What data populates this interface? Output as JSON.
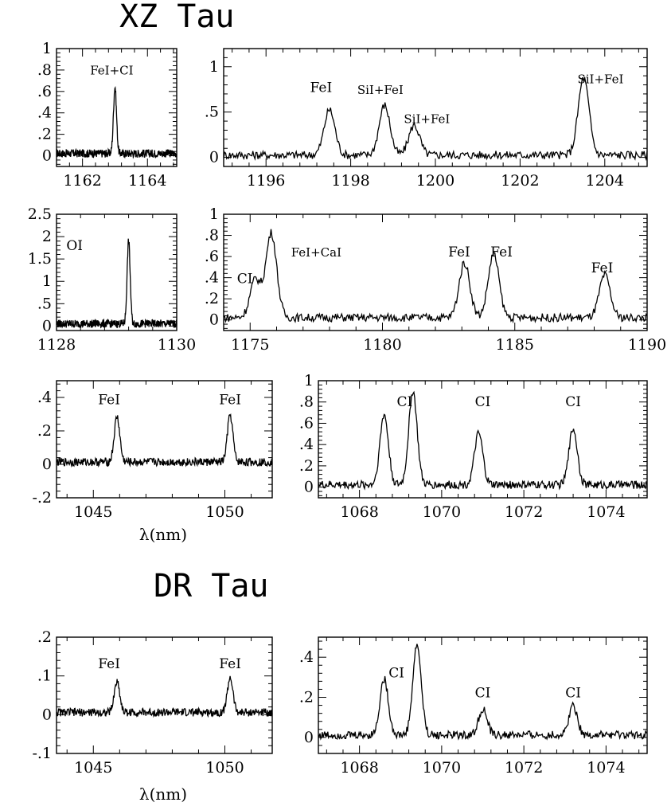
{
  "figure": {
    "titles": [
      "XZ Tau",
      "DR Tau"
    ],
    "xlabel": "λ(nm)"
  },
  "chart_data": [
    {
      "type": "line",
      "star": "XZ Tau",
      "xlim": [
        1161.2,
        1164.9
      ],
      "ylim": [
        -0.1,
        1.0
      ],
      "xticks": [
        1162,
        1164
      ],
      "yticks": [
        0,
        0.2,
        0.4,
        0.6,
        0.8,
        1
      ],
      "features": [
        {
          "label": "FeI+CI",
          "x": 1163.0,
          "peak": 0.62
        }
      ],
      "annotations": [
        {
          "text": "FeI+CI",
          "x": 1162.9,
          "y": 0.76
        }
      ]
    },
    {
      "type": "line",
      "star": "XZ Tau",
      "xlim": [
        1195.0,
        1205.0
      ],
      "ylim": [
        -0.1,
        1.2
      ],
      "xticks": [
        1196,
        1198,
        1200,
        1202,
        1204
      ],
      "yticks": [
        0,
        0.5,
        1
      ],
      "features": [
        {
          "label": "FeI",
          "x": 1197.5,
          "peak": 0.5
        },
        {
          "label": "SiI+FeI",
          "x": 1198.8,
          "peak": 0.55
        },
        {
          "label": "SiI+FeI",
          "x": 1199.5,
          "peak": 0.33
        },
        {
          "label": "SiI+FeI",
          "x": 1203.5,
          "peak": 0.85
        }
      ],
      "annotations": [
        {
          "text": "FeI",
          "x": 1197.3,
          "y": 0.72
        },
        {
          "text": "SiI+FeI",
          "x": 1198.7,
          "y": 0.7
        },
        {
          "text": "SiI+FeI",
          "x": 1199.8,
          "y": 0.38
        },
        {
          "text": "SiI+FeI",
          "x": 1203.9,
          "y": 0.82
        }
      ]
    },
    {
      "type": "line",
      "star": "XZ Tau",
      "xlim": [
        1128.0,
        1130.0
      ],
      "ylim": [
        -0.1,
        2.5
      ],
      "xticks": [
        1128,
        1130
      ],
      "yticks": [
        0,
        0.5,
        1,
        1.5,
        2,
        2.5
      ],
      "features": [
        {
          "label": "OI",
          "x": 1129.2,
          "peak": 1.85
        }
      ],
      "annotations": [
        {
          "text": "OI",
          "x": 1128.3,
          "y": 1.7
        }
      ]
    },
    {
      "type": "line",
      "star": "XZ Tau",
      "xlim": [
        1174.0,
        1190.0
      ],
      "ylim": [
        -0.1,
        1.0
      ],
      "xticks": [
        1175,
        1180,
        1185,
        1190
      ],
      "yticks": [
        0,
        0.2,
        0.4,
        0.6,
        0.8,
        1
      ],
      "features": [
        {
          "label": "CI",
          "x": 1175.2,
          "peak": 0.36
        },
        {
          "label": "FeI+CaI",
          "x": 1175.8,
          "peak": 0.8
        },
        {
          "label": "FeI",
          "x": 1183.1,
          "peak": 0.52
        },
        {
          "label": "FeI",
          "x": 1184.2,
          "peak": 0.6
        },
        {
          "label": "FeI",
          "x": 1188.4,
          "peak": 0.4
        }
      ],
      "annotations": [
        {
          "text": "CI",
          "x": 1174.8,
          "y": 0.35
        },
        {
          "text": "FeI+CaI",
          "x": 1177.5,
          "y": 0.6
        },
        {
          "text": "FeI",
          "x": 1182.9,
          "y": 0.6
        },
        {
          "text": "FeI",
          "x": 1184.5,
          "y": 0.6
        },
        {
          "text": "FeI",
          "x": 1188.3,
          "y": 0.45
        }
      ]
    },
    {
      "type": "line",
      "star": "XZ Tau",
      "xlim": [
        1043.6,
        1051.8
      ],
      "ylim": [
        -0.2,
        0.5
      ],
      "xticks": [
        1045,
        1050
      ],
      "yticks": [
        -0.2,
        0,
        0.2,
        0.4
      ],
      "features": [
        {
          "label": "FeI",
          "x": 1045.9,
          "peak": 0.27
        },
        {
          "label": "FeI",
          "x": 1050.2,
          "peak": 0.28
        }
      ],
      "annotations": [
        {
          "text": "FeI",
          "x": 1045.6,
          "y": 0.36
        },
        {
          "text": "FeI",
          "x": 1050.2,
          "y": 0.36
        }
      ]
    },
    {
      "type": "line",
      "star": "XZ Tau",
      "xlim": [
        1067.0,
        1075.0
      ],
      "ylim": [
        -0.1,
        1.0
      ],
      "xticks": [
        1068,
        1070,
        1072,
        1074
      ],
      "yticks": [
        0,
        0.2,
        0.4,
        0.6,
        0.8,
        1
      ],
      "features": [
        {
          "label": "CI",
          "x": 1068.6,
          "peak": 0.66
        },
        {
          "label": "CI",
          "x": 1069.3,
          "peak": 0.88
        },
        {
          "label": "CI",
          "x": 1070.9,
          "peak": 0.48
        },
        {
          "label": "CI",
          "x": 1073.2,
          "peak": 0.53
        }
      ],
      "annotations": [
        {
          "text": "CI",
          "x": 1069.1,
          "y": 0.76
        },
        {
          "text": "CI",
          "x": 1071.0,
          "y": 0.76
        },
        {
          "text": "CI",
          "x": 1073.2,
          "y": 0.76
        }
      ]
    },
    {
      "type": "line",
      "star": "DR Tau",
      "xlim": [
        1043.6,
        1051.8
      ],
      "ylim": [
        -0.1,
        0.2
      ],
      "xticks": [
        1045,
        1050
      ],
      "yticks": [
        -0.1,
        0,
        0.1,
        0.2
      ],
      "features": [
        {
          "label": "FeI",
          "x": 1045.9,
          "peak": 0.08
        },
        {
          "label": "FeI",
          "x": 1050.2,
          "peak": 0.09
        }
      ],
      "annotations": [
        {
          "text": "FeI",
          "x": 1045.6,
          "y": 0.12
        },
        {
          "text": "FeI",
          "x": 1050.2,
          "y": 0.12
        }
      ]
    },
    {
      "type": "line",
      "star": "DR Tau",
      "xlim": [
        1067.0,
        1075.0
      ],
      "ylim": [
        -0.08,
        0.5
      ],
      "xticks": [
        1068,
        1070,
        1072,
        1074
      ],
      "yticks": [
        0,
        0.2,
        0.4
      ],
      "features": [
        {
          "label": "CI",
          "x": 1068.6,
          "peak": 0.28
        },
        {
          "label": "CI",
          "x": 1069.4,
          "peak": 0.45
        },
        {
          "label": "CI",
          "x": 1071.0,
          "peak": 0.13
        },
        {
          "label": "CI",
          "x": 1073.2,
          "peak": 0.15
        }
      ],
      "annotations": [
        {
          "text": "CI",
          "x": 1068.9,
          "y": 0.3
        },
        {
          "text": "CI",
          "x": 1071.0,
          "y": 0.2
        },
        {
          "text": "CI",
          "x": 1073.2,
          "y": 0.2
        }
      ]
    }
  ]
}
